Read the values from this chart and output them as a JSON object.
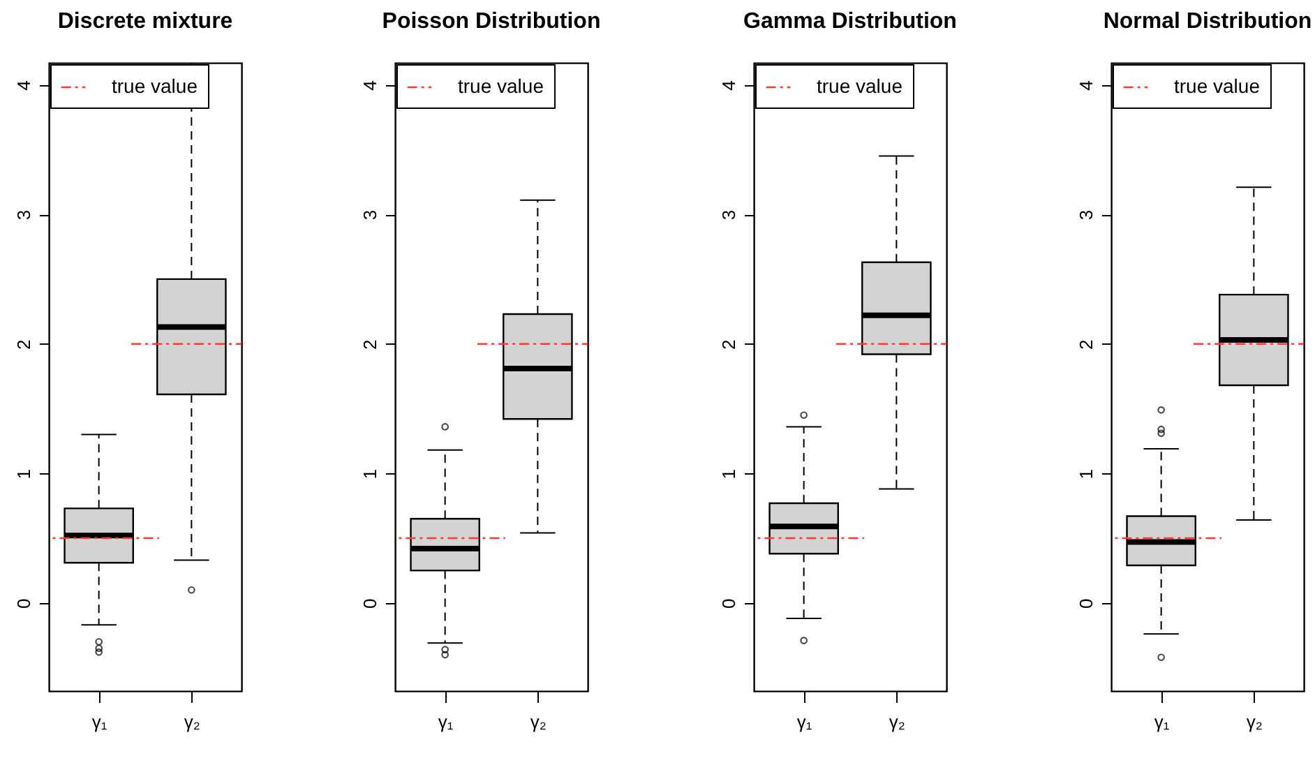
{
  "chart_data": [
    {
      "type": "box",
      "title": "Discrete mixture",
      "categories": [
        "γ₁",
        "γ₂"
      ],
      "ylim": [
        -0.68,
        4.17
      ],
      "yticks": [
        0,
        1,
        2,
        3,
        4
      ],
      "legend": "top",
      "series": [
        {
          "color": "#d3d3d3",
          "boxes": [
            {
              "low": -0.17,
              "q1": 0.31,
              "median": 0.52,
              "q3": 0.73,
              "high": 1.3,
              "outliers": [
                -0.3,
                -0.35,
                -0.38
              ]
            },
            {
              "low": 0.33,
              "q1": 1.61,
              "median": 2.13,
              "q3": 2.5,
              "high": null,
              "outliers": [
                0.1
              ]
            }
          ]
        }
      ],
      "ref_lines": [
        {
          "axis": "y",
          "value": 0.5,
          "label": "true value",
          "color": "#ff3b30",
          "line_style": "dashdot"
        },
        {
          "axis": "y",
          "value": 2,
          "color": "#ff3b30",
          "line_style": "dashdot"
        }
      ]
    },
    {
      "type": "box",
      "title": "Poisson Distribution",
      "categories": [
        "γ₁",
        "γ₂"
      ],
      "ylim": [
        -0.68,
        4.17
      ],
      "yticks": [
        0,
        1,
        2,
        3,
        4
      ],
      "legend": "top",
      "series": [
        {
          "color": "#d3d3d3",
          "boxes": [
            {
              "low": -0.31,
              "q1": 0.25,
              "median": 0.42,
              "q3": 0.65,
              "high": 1.18,
              "outliers": [
                1.36,
                -0.36,
                -0.4
              ]
            },
            {
              "low": 0.54,
              "q1": 1.42,
              "median": 1.81,
              "q3": 2.23,
              "high": 3.11
            }
          ]
        }
      ],
      "ref_lines": [
        {
          "axis": "y",
          "value": 0.5,
          "label": "true value",
          "color": "#ff3b30",
          "line_style": "dashdot"
        },
        {
          "axis": "y",
          "value": 2,
          "color": "#ff3b30",
          "line_style": "dashdot"
        }
      ]
    },
    {
      "type": "box",
      "title": "Gamma Distribution",
      "categories": [
        "γ₁",
        "γ₂"
      ],
      "ylim": [
        -0.68,
        4.17
      ],
      "yticks": [
        0,
        1,
        2,
        3,
        4
      ],
      "legend": "top",
      "series": [
        {
          "color": "#d3d3d3",
          "boxes": [
            {
              "low": -0.12,
              "q1": 0.38,
              "median": 0.59,
              "q3": 0.77,
              "high": 1.36,
              "outliers": [
                1.45,
                -0.29
              ]
            },
            {
              "low": 0.88,
              "q1": 1.92,
              "median": 2.22,
              "q3": 2.63,
              "high": 3.45
            }
          ]
        }
      ],
      "ref_lines": [
        {
          "axis": "y",
          "value": 0.5,
          "label": "true value",
          "color": "#ff3b30",
          "line_style": "dashdot"
        },
        {
          "axis": "y",
          "value": 2,
          "color": "#ff3b30",
          "line_style": "dashdot"
        }
      ]
    },
    {
      "type": "box",
      "title": "Normal Distribution",
      "categories": [
        "γ₁",
        "γ₂"
      ],
      "ylim": [
        -0.68,
        4.17
      ],
      "yticks": [
        0,
        1,
        2,
        3,
        4
      ],
      "legend": "top",
      "series": [
        {
          "color": "#d3d3d3",
          "boxes": [
            {
              "low": -0.24,
              "q1": 0.29,
              "median": 0.47,
              "q3": 0.67,
              "high": 1.19,
              "outliers": [
                1.49,
                1.34,
                1.31,
                -0.42
              ]
            },
            {
              "low": 0.64,
              "q1": 1.68,
              "median": 2.03,
              "q3": 2.38,
              "high": 3.21
            }
          ]
        }
      ],
      "ref_lines": [
        {
          "axis": "y",
          "value": 0.5,
          "label": "true value",
          "color": "#ff3b30",
          "line_style": "dashdot"
        },
        {
          "axis": "y",
          "value": 2,
          "color": "#ff3b30",
          "line_style": "dashdot"
        }
      ]
    }
  ]
}
